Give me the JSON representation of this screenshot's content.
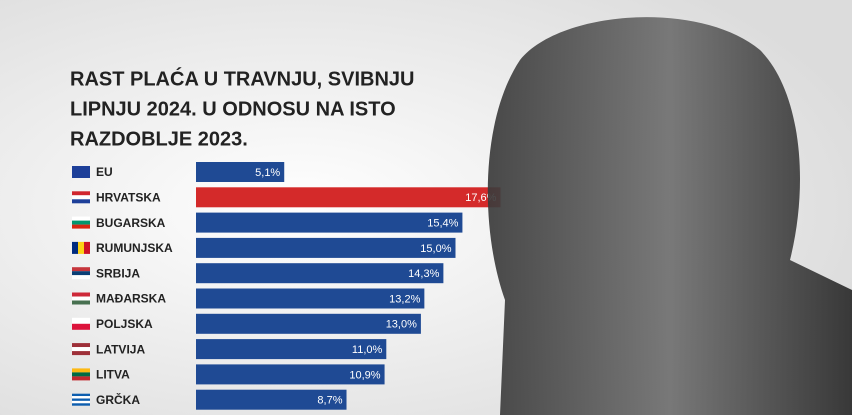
{
  "chart_data": {
    "type": "bar",
    "orientation": "horizontal",
    "title_lines": [
      "RAST PLAĆA U TRAVNJU, SVIBNJU",
      "LIPNJU 2024. U ODNOSU NA ISTO",
      "RAZDOBLJE 2023."
    ],
    "categories": [
      "EU",
      "HRVATSKA",
      "BUGARSKA",
      "RUMUNJSKA",
      "SRBIJA",
      "MAĐARSKA",
      "POLJSKA",
      "LATVIJA",
      "LITVA",
      "GRČKA"
    ],
    "values": [
      5.1,
      17.6,
      15.4,
      15.0,
      14.3,
      13.2,
      13.0,
      11.0,
      10.9,
      8.7
    ],
    "value_labels": [
      "5,1%",
      "17,6%",
      "15,4%",
      "15,0%",
      "14,3%",
      "13,2%",
      "13,0%",
      "11,0%",
      "10,9%",
      "8,7%"
    ],
    "colors": [
      "#1f4a94",
      "#d42a2a",
      "#1f4a94",
      "#1f4a94",
      "#1f4a94",
      "#1f4a94",
      "#1f4a94",
      "#1f4a94",
      "#1f4a94",
      "#1f4a94"
    ]
  }
}
